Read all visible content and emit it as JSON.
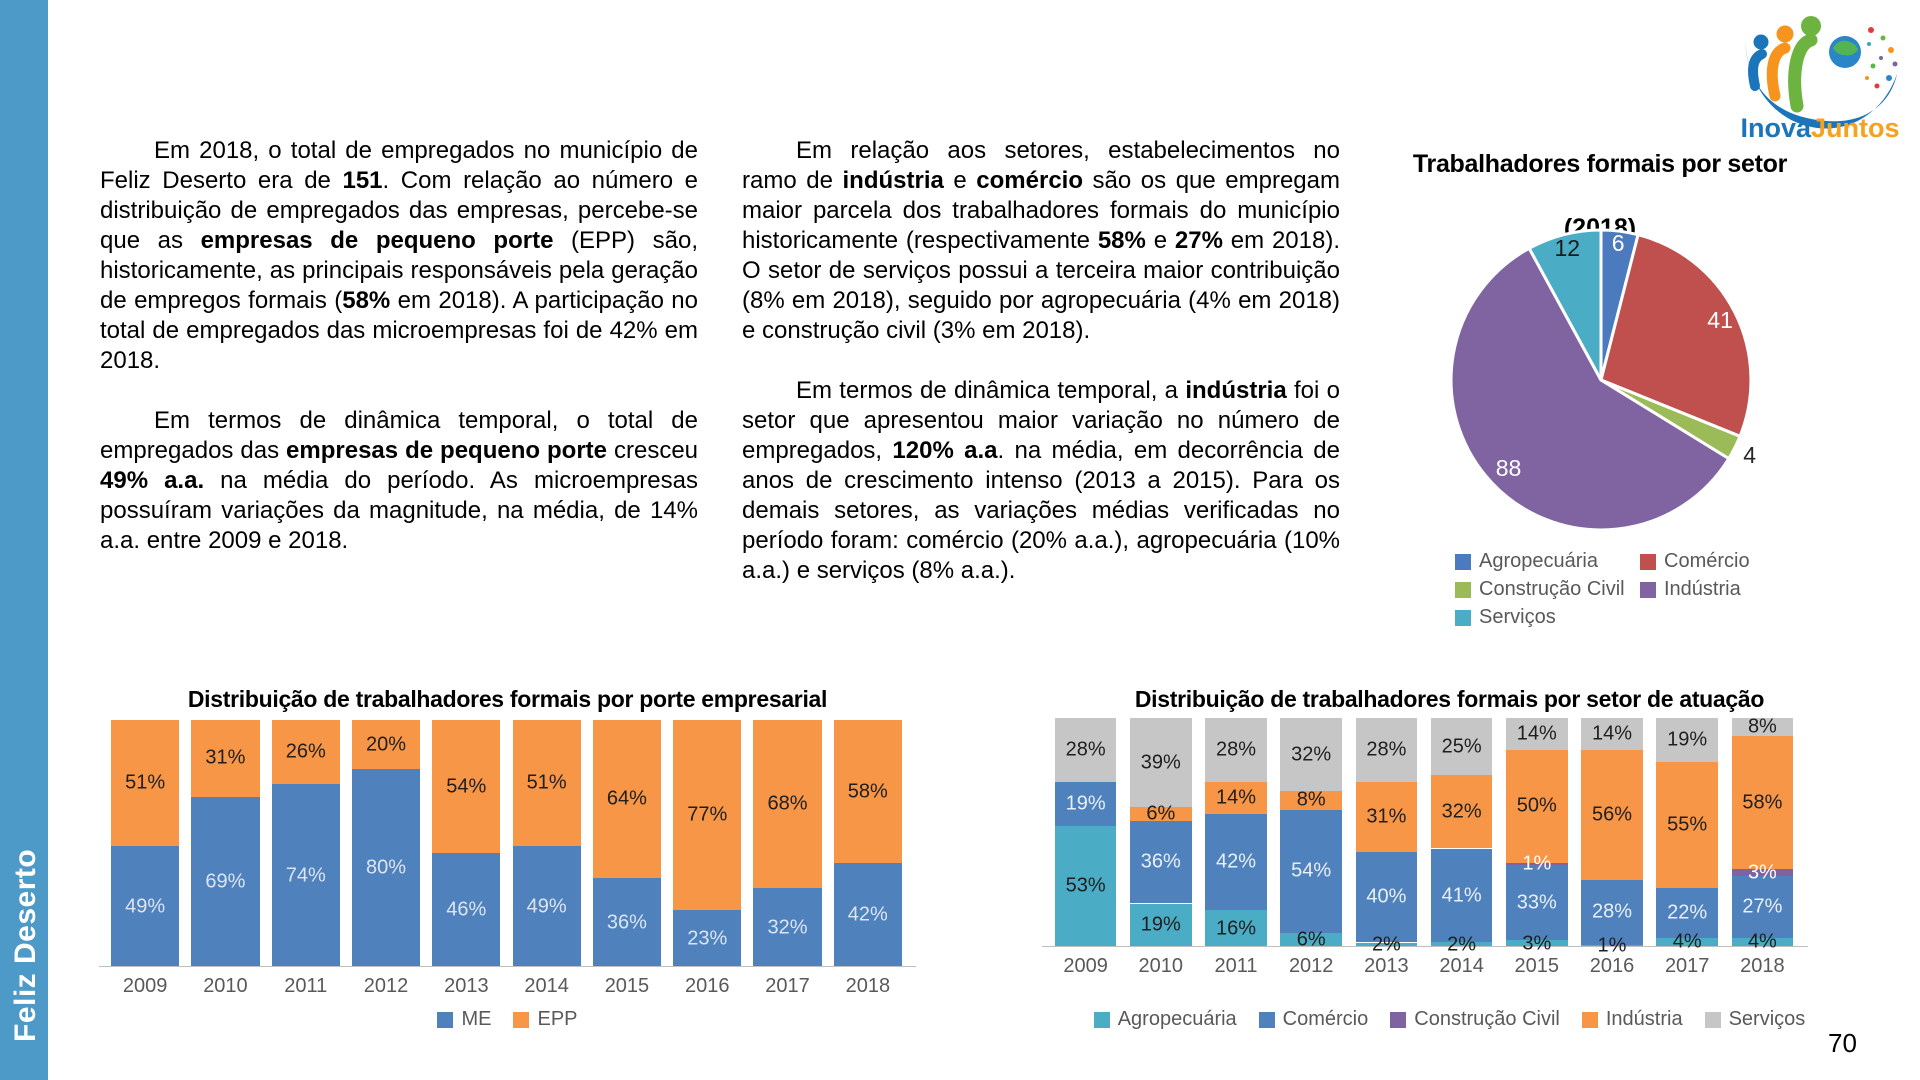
{
  "page": {
    "number": "70"
  },
  "sidebar": {
    "label": "Feliz Deserto"
  },
  "logo": {
    "part1": "Inova",
    "part2": "Juntos"
  },
  "text_columns": {
    "col1": {
      "p1": [
        {
          "t": "Em 2018, o total de empregados no município de Feliz Deserto era de "
        },
        {
          "t": "151",
          "b": true
        },
        {
          "t": ". Com relação ao número e distribuição de empregados das empresas, percebe-se que as "
        },
        {
          "t": "empresas de pequeno porte",
          "b": true
        },
        {
          "t": " (EPP) são, historicamente, as principais responsáveis pela geração de empregos formais ("
        },
        {
          "t": "58%",
          "b": true
        },
        {
          "t": " em 2018). A participação no total de empregados das microempresas foi de 42% em 2018."
        }
      ],
      "p2": [
        {
          "t": "Em termos de dinâmica temporal, o total de empregados das "
        },
        {
          "t": "empresas de pequeno porte",
          "b": true
        },
        {
          "t": " cresceu "
        },
        {
          "t": "49% a.a.",
          "b": true
        },
        {
          "t": " na média do período. As microempresas possuíram variações da magnitude, na média, de 14% a.a. entre 2009 e 2018."
        }
      ]
    },
    "col2": {
      "p1": [
        {
          "t": "Em relação aos setores, estabelecimentos no ramo de "
        },
        {
          "t": "indústria",
          "b": true
        },
        {
          "t": " e "
        },
        {
          "t": "comércio",
          "b": true
        },
        {
          "t": " são os que empregam maior parcela dos trabalhadores formais do município historicamente (respectivamente "
        },
        {
          "t": "58%",
          "b": true
        },
        {
          "t": " e "
        },
        {
          "t": "27%",
          "b": true
        },
        {
          "t": " em 2018). O setor de serviços possui a terceira maior contribuição (8% em 2018), seguido por agropecuária (4% em 2018) e construção civil (3% em 2018)."
        }
      ],
      "p2": [
        {
          "t": "Em termos de dinâmica temporal, a "
        },
        {
          "t": "indústria",
          "b": true
        },
        {
          "t": " foi o setor que apresentou maior variação no número de empregados, "
        },
        {
          "t": "120% a.a",
          "b": true
        },
        {
          "t": ". na média, em decorrência de anos de crescimento intenso (2013 a 2015). Para os demais setores, as variações médias verificadas no período foram: comércio (20% a.a.), agropecuária (10% a.a.) e serviços (8% a.a.)."
        }
      ]
    }
  },
  "chart_data": [
    {
      "type": "pie",
      "title": "Trabalhadores formais por setor",
      "subtitle": "(2018)",
      "legend_position": "bottom",
      "slices": [
        {
          "name": "Agropecuária",
          "value": 6,
          "color": "#4b7bbe",
          "label_color": "#ffffff",
          "label_r": 0.92
        },
        {
          "name": "Comércio",
          "value": 41,
          "color": "#c0504d",
          "label_color": "#ffffff",
          "label_r": 0.89
        },
        {
          "name": "Construção Civil",
          "value": 4,
          "color": "#9bbb59",
          "label_color": "#262626",
          "label_r": 1.11
        },
        {
          "name": "Indústria",
          "value": 88,
          "color": "#8064a2",
          "label_color": "#ffffff",
          "label_r": 0.85
        },
        {
          "name": "Serviços",
          "value": 12,
          "color": "#4bacc6",
          "label_color": "#1a1a1a",
          "label_r": 0.91
        }
      ]
    },
    {
      "type": "bar",
      "subtype": "stacked_100",
      "title": "Distribuição de trabalhadores formais por porte empresarial",
      "categories": [
        "2009",
        "2010",
        "2011",
        "2012",
        "2013",
        "2014",
        "2015",
        "2016",
        "2017",
        "2018"
      ],
      "series": [
        {
          "name": "ME",
          "color": "#4f81bd",
          "label_color": "#dbe5f1",
          "values": [
            49,
            69,
            74,
            80,
            46,
            49,
            36,
            23,
            32,
            42
          ]
        },
        {
          "name": "EPP",
          "color": "#f79646",
          "label_color": "#1f1f1f",
          "values": [
            51,
            31,
            26,
            20,
            54,
            51,
            64,
            77,
            68,
            58
          ]
        }
      ],
      "value_suffix": "%",
      "bar_width_frac": 0.85,
      "ylim": [
        0,
        100
      ],
      "legend_position": "bottom"
    },
    {
      "type": "bar",
      "subtype": "stacked_100",
      "title": "Distribuição de trabalhadores formais por setor de atuação",
      "categories": [
        "2009",
        "2010",
        "2011",
        "2012",
        "2013",
        "2014",
        "2015",
        "2016",
        "2017",
        "2018"
      ],
      "series": [
        {
          "name": "Agropecuária",
          "color": "#4bacc6",
          "label_color": "#1f1f1f",
          "values": [
            53,
            19,
            16,
            6,
            2,
            2,
            3,
            1,
            4,
            4
          ]
        },
        {
          "name": "Comércio",
          "color": "#4f81bd",
          "label_color": "#e9eff7",
          "values": [
            19,
            36,
            42,
            54,
            40,
            41,
            33,
            28,
            22,
            27
          ]
        },
        {
          "name": "Construção Civil",
          "color": "#7e62a1",
          "label_color": "#ffffff",
          "values": [
            0,
            0,
            0,
            0,
            0,
            0,
            1,
            0,
            0,
            3
          ]
        },
        {
          "name": "Indústria",
          "color": "#f79646",
          "label_color": "#1f1f1f",
          "values": [
            0,
            6,
            14,
            8,
            31,
            32,
            50,
            56,
            55,
            58
          ]
        },
        {
          "name": "Serviços",
          "color": "#c6c6c6",
          "label_color": "#1f1f1f",
          "values": [
            28,
            39,
            28,
            32,
            28,
            25,
            14,
            14,
            19,
            8
          ]
        }
      ],
      "value_suffix": "%",
      "bar_width_frac": 0.82,
      "ylim": [
        0,
        100
      ],
      "legend_position": "bottom"
    }
  ]
}
